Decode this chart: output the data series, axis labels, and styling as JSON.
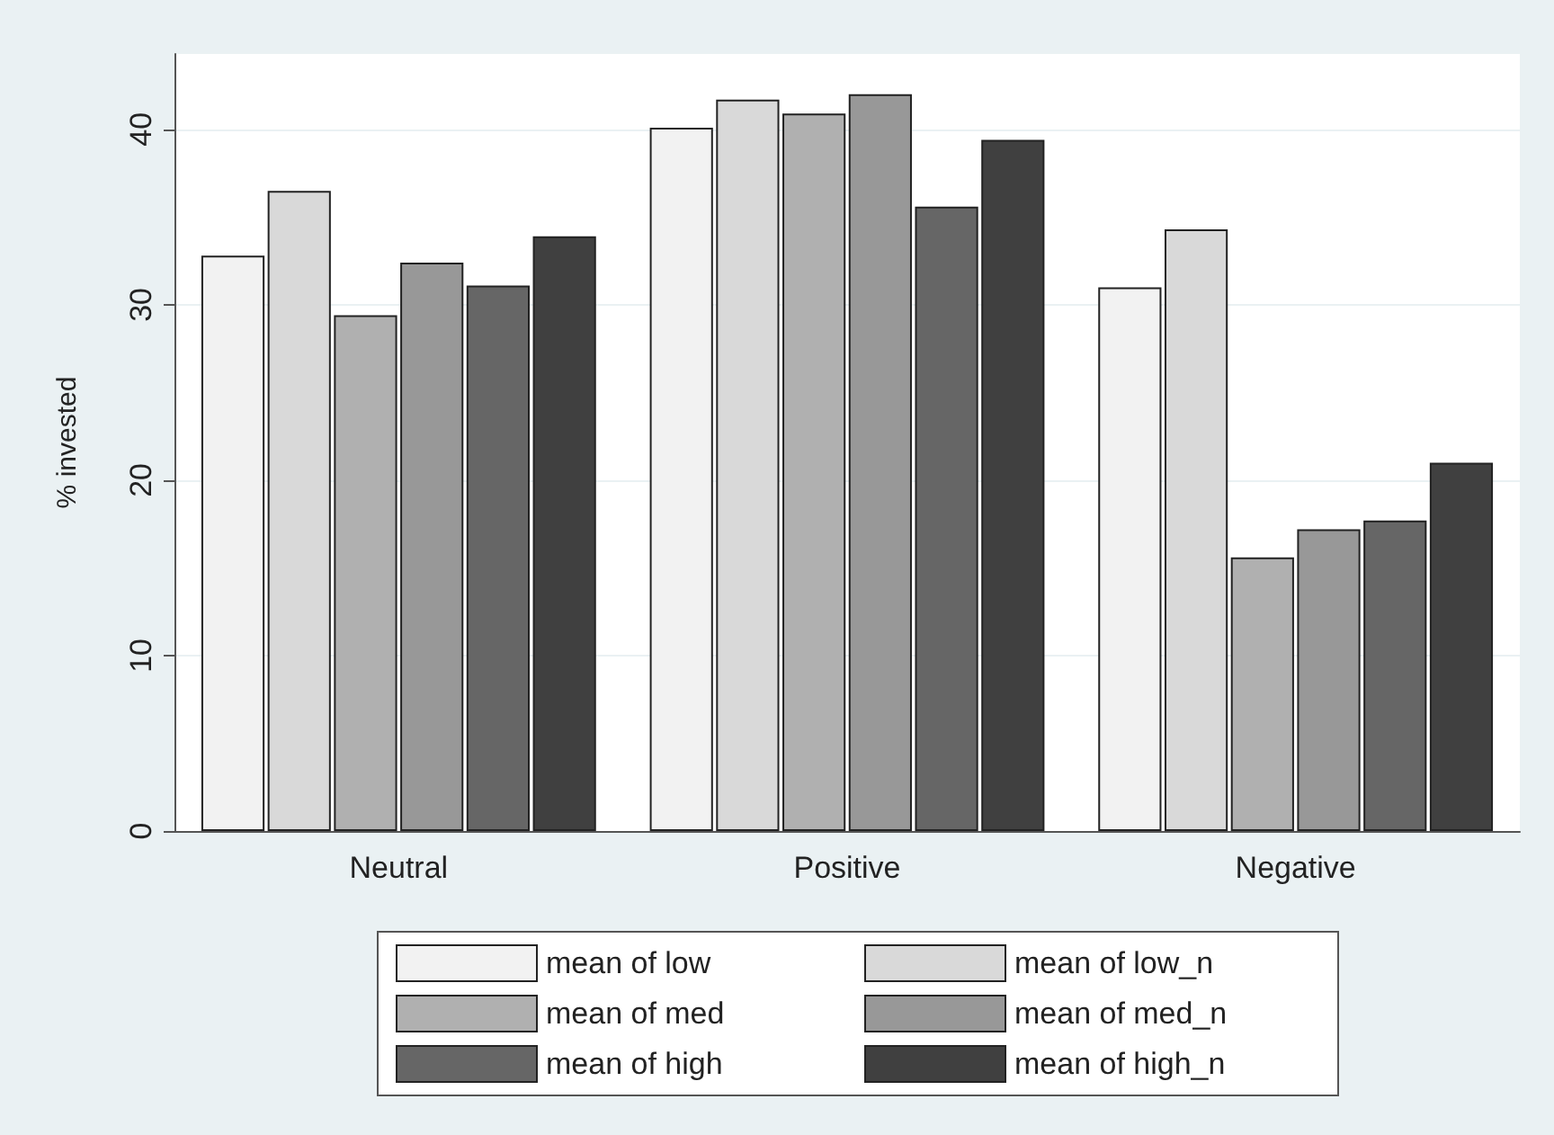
{
  "chart_data": {
    "type": "bar",
    "ylabel": "% invested",
    "categories": [
      "Neutral",
      "Positive",
      "Negative"
    ],
    "series": [
      {
        "name": "mean of low",
        "color": "#f2f2f2",
        "values": [
          32.8,
          40.1,
          31.0
        ]
      },
      {
        "name": "mean of low_n",
        "color": "#d9d9d9",
        "values": [
          36.5,
          41.7,
          34.3
        ]
      },
      {
        "name": "mean of med",
        "color": "#b0b0b0",
        "values": [
          29.4,
          40.9,
          15.6
        ]
      },
      {
        "name": "mean of med_n",
        "color": "#989898",
        "values": [
          32.4,
          42.0,
          17.2
        ]
      },
      {
        "name": "mean of high",
        "color": "#666666",
        "values": [
          31.1,
          35.6,
          17.7
        ]
      },
      {
        "name": "mean of high_n",
        "color": "#404040",
        "values": [
          33.9,
          39.4,
          21.0
        ]
      }
    ],
    "ylim": [
      0,
      44.3
    ],
    "yticks": [
      0,
      10,
      20,
      30,
      40
    ],
    "grid": "y",
    "legend": "bottom"
  }
}
